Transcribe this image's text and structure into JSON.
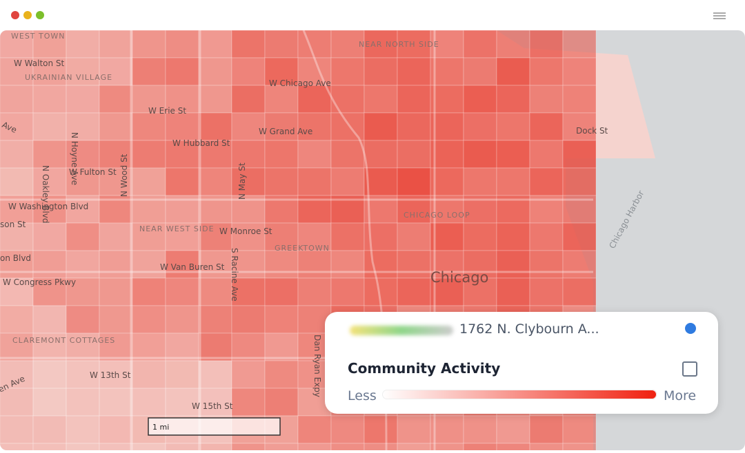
{
  "map": {
    "labels": [
      "WEST TOWN",
      "W Walton St",
      "UKRAINIAN VILLAGE",
      "NEAR NORTH SIDE",
      "W Chicago Ave",
      "W Erie St",
      "W Grand Ave",
      "W Hubbard St",
      "Dock St",
      "N Oakley Blvd",
      "N Hoyne Ave",
      "W Fulton St",
      "N Wood St",
      "N May St",
      "W Washington Blvd",
      "NEAR WEST SIDE",
      "W Monroe St",
      "GREEKTOWN",
      "CHICAGO LOOP",
      "Chicago",
      "Chicago Harbor",
      "W Van Buren St",
      "W Congress Pkwy",
      "S Racine Ave",
      "CLAREMONT COTTAGES",
      "W 13th St",
      "W 15th St",
      "Dan Ryan Expy",
      "son St",
      "on Blvd",
      "Ave",
      "en Ave"
    ]
  },
  "scale_bar": "1 mi",
  "card": {
    "address": "1762 N. Clybourn A...",
    "title": "Community Activity",
    "less": "Less",
    "more": "More"
  }
}
